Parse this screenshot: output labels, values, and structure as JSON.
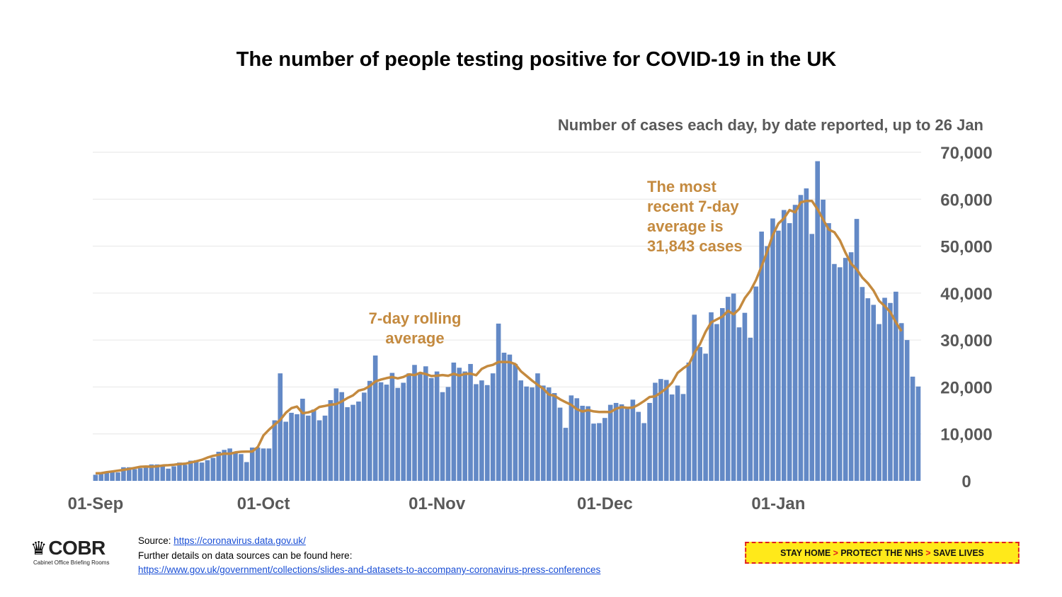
{
  "title": "The number of people testing positive for COVID-19 in the UK",
  "chart_data": {
    "type": "bar",
    "subtitle": "Number of cases each day, by date reported, up to 26 Jan",
    "x_start": "2020-09-01",
    "x_end": "2021-01-26",
    "x_tick_labels": [
      "01-Sep",
      "01-Oct",
      "01-Nov",
      "01-Dec",
      "01-Jan"
    ],
    "y_tick_labels": [
      "0",
      "10,000",
      "20,000",
      "30,000",
      "40,000",
      "50,000",
      "60,000",
      "70,000"
    ],
    "ylim": [
      0,
      70000
    ],
    "y_axis_side": "right",
    "grid": true,
    "bar_color": "#6389c6",
    "line_color": "#c48a3f",
    "series": [
      {
        "type": "bar",
        "values": [
          1300,
          1500,
          1700,
          1900,
          1800,
          2900,
          2900,
          2500,
          2700,
          3000,
          3500,
          3500,
          3300,
          2600,
          3100,
          3900,
          3400,
          4300,
          4400,
          3900,
          4400,
          4900,
          6200,
          6600,
          6900,
          6000,
          5700,
          4000,
          7100,
          7100,
          6900,
          6900,
          12900,
          22900,
          12600,
          14500,
          14200,
          17500,
          13900,
          15200,
          12900,
          13900,
          17200,
          19700,
          18900,
          15700,
          16200,
          16900,
          18800,
          21300,
          26700,
          21000,
          20500,
          23000,
          19800,
          20900,
          22900,
          24700,
          23100,
          24400,
          21900,
          23300,
          18900,
          20000,
          25200,
          24100,
          23300,
          24900,
          20600,
          21400,
          20400,
          22900,
          33500,
          27300,
          26900,
          24900,
          21400,
          20100,
          19900,
          22900,
          20300,
          19900,
          18700,
          15600,
          11300,
          18200,
          17600,
          16000,
          15900,
          12200,
          12300,
          13400,
          16200,
          16600,
          16300,
          15500,
          17300,
          14700,
          12300,
          16600,
          20900,
          21700,
          21500,
          18400,
          20300,
          18500,
          25200,
          35400,
          28500,
          27100,
          35900,
          33400,
          36800,
          39200,
          39900,
          32700,
          35800,
          30500,
          41400,
          53100,
          50000,
          55900,
          53300,
          57700,
          54900,
          58800,
          60900,
          62300,
          52600,
          68100,
          59900,
          54900,
          46200,
          45500,
          47500,
          48700,
          55800,
          41300,
          38900,
          37500,
          33400,
          39000,
          37900,
          40300,
          33600,
          30000,
          22200,
          20100
        ]
      },
      {
        "type": "line",
        "name": "7-day rolling average",
        "last_value": 31843
      }
    ],
    "annotations": {
      "rolling": [
        "7-day rolling",
        "average"
      ],
      "recent": [
        "The most",
        "recent 7-day",
        "average is",
        "31,843 cases"
      ]
    }
  },
  "footer": {
    "logo_text": "COBR",
    "logo_subtext": "Cabinet Office Briefing Rooms",
    "source_label": "Source: ",
    "source_link": "https://coronavirus.data.gov.uk/",
    "details_text": "Further details on data sources can be found here:",
    "details_link": "https://www.gov.uk/government/collections/slides-and-datasets-to-accompany-coronavirus-press-conferences",
    "banner": [
      "STAY HOME",
      "PROTECT THE NHS",
      "SAVE LIVES"
    ]
  }
}
